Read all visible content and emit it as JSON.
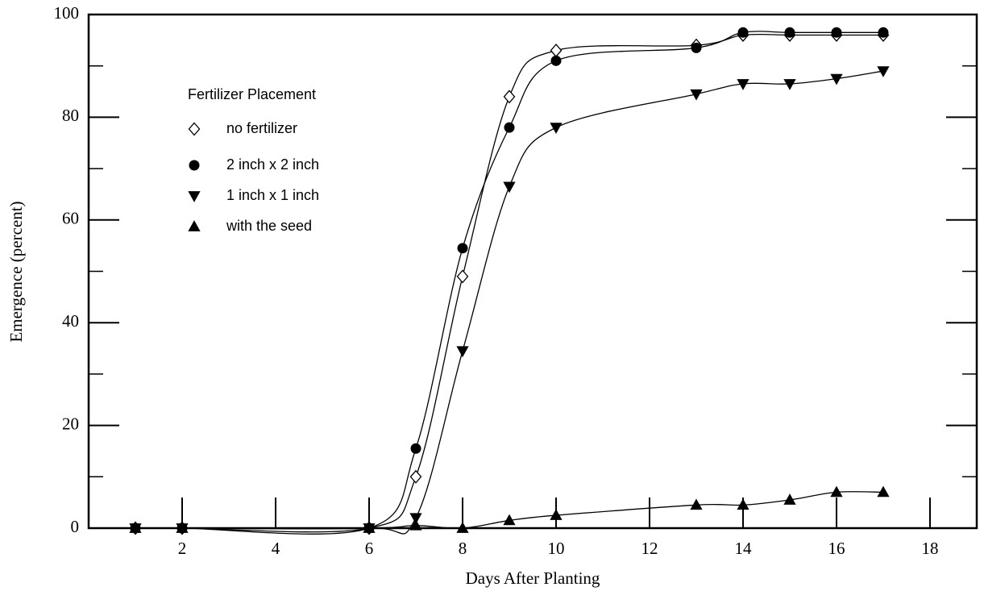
{
  "chart_data": {
    "type": "line",
    "xlabel": "Days After Planting",
    "ylabel": "Emergence (percent)",
    "legend_title": "Fertilizer Placement",
    "x": [
      1,
      2,
      6,
      7,
      8,
      9,
      10,
      13,
      14,
      15,
      16,
      17
    ],
    "series": [
      {
        "name": "no fertilizer",
        "marker": "diamond-open",
        "color": "#000000",
        "values": [
          0,
          0,
          0,
          10,
          49,
          84,
          93,
          94,
          96,
          96,
          96,
          96
        ]
      },
      {
        "name": "2 inch x 2 inch",
        "marker": "circle",
        "color": "#000000",
        "values": [
          0,
          0,
          0,
          15.5,
          54.5,
          78,
          91,
          93.5,
          96.5,
          96.5,
          96.5,
          96.5
        ]
      },
      {
        "name": "1 inch x 1 inch",
        "marker": "triangle-down",
        "color": "#000000",
        "values": [
          0,
          0,
          0,
          2,
          34.5,
          66.5,
          78,
          84.5,
          86.5,
          86.5,
          87.5,
          89
        ]
      },
      {
        "name": "with the seed",
        "marker": "triangle-up",
        "color": "#000000",
        "values": [
          0,
          0,
          0,
          0.5,
          0,
          1.5,
          2.5,
          4.5,
          4.5,
          5.5,
          7,
          7
        ]
      }
    ],
    "xlim": [
      0,
      19
    ],
    "xticks": [
      2,
      4,
      6,
      8,
      10,
      12,
      14,
      16,
      18
    ],
    "ylim": [
      0,
      100
    ],
    "yticks": [
      0,
      20,
      40,
      60,
      80,
      100
    ]
  }
}
